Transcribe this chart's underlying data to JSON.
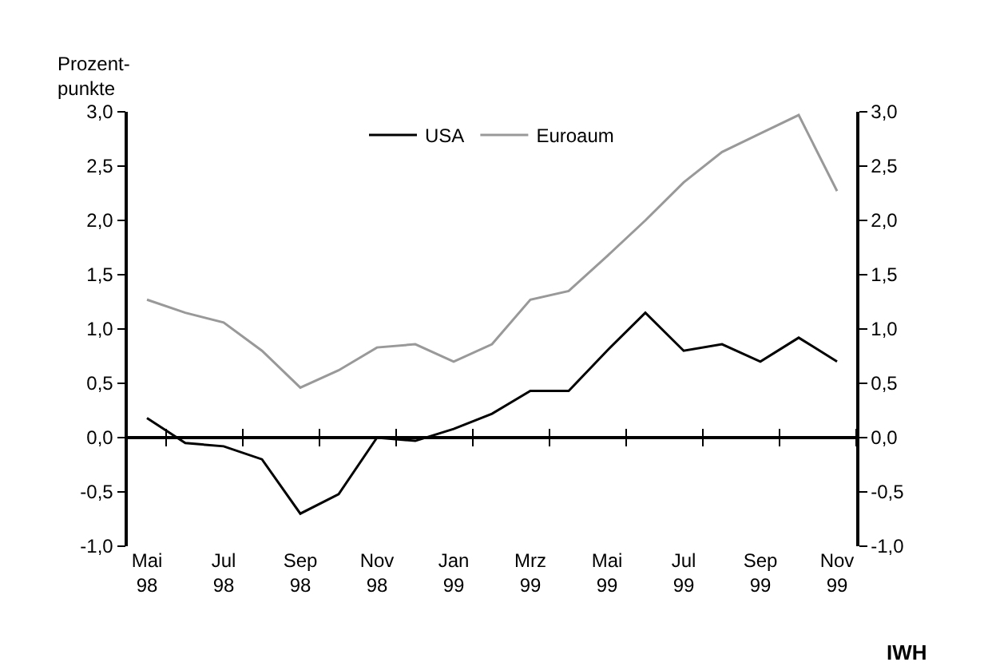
{
  "chart_data": {
    "type": "line",
    "ylabel": "Prozent-\npunkte",
    "categories": [
      "Mai\n98",
      null,
      "Jul\n98",
      null,
      "Sep\n98",
      null,
      "Nov\n98",
      null,
      "Jan\n99",
      null,
      "Mrz\n99",
      null,
      "Mai\n99",
      null,
      "Jul\n99",
      null,
      "Sep\n99",
      null,
      "Nov\n99"
    ],
    "series": [
      {
        "name": "USA",
        "color": "#000000",
        "values": [
          0.18,
          -0.05,
          -0.08,
          -0.2,
          -0.7,
          -0.52,
          0.0,
          -0.03,
          0.08,
          0.22,
          0.43,
          0.43,
          0.8,
          1.15,
          0.8,
          0.86,
          0.7,
          0.92,
          0.7
        ]
      },
      {
        "name": "Euroaum",
        "color": "#999999",
        "values": [
          1.27,
          1.15,
          1.06,
          0.8,
          0.46,
          0.62,
          0.83,
          0.86,
          0.7,
          0.86,
          1.27,
          1.35,
          1.67,
          2.0,
          2.35,
          2.63,
          2.8,
          2.97,
          2.27
        ]
      }
    ],
    "ylim": [
      -1.0,
      3.0
    ],
    "yticks": [
      {
        "value": -1.0,
        "label": "-1,0"
      },
      {
        "value": -0.5,
        "label": "-0,5"
      },
      {
        "value": 0.0,
        "label": "0,0"
      },
      {
        "value": 0.5,
        "label": "0,5"
      },
      {
        "value": 1.0,
        "label": "1,0"
      },
      {
        "value": 1.5,
        "label": "1,5"
      },
      {
        "value": 2.0,
        "label": "2,0"
      },
      {
        "value": 2.5,
        "label": "2,5"
      },
      {
        "value": 3.0,
        "label": "3,0"
      }
    ],
    "y2lim": [
      -1.0,
      3.0
    ],
    "y2ticks": [
      {
        "value": -1.0,
        "label": "-1,0"
      },
      {
        "value": -0.5,
        "label": "-0,5"
      },
      {
        "value": 0.0,
        "label": "0,0"
      },
      {
        "value": 0.5,
        "label": "0,5"
      },
      {
        "value": 1.0,
        "label": "1,0"
      },
      {
        "value": 1.5,
        "label": "1,5"
      },
      {
        "value": 2.0,
        "label": "2,0"
      },
      {
        "value": 2.5,
        "label": "2,5"
      },
      {
        "value": 3.0,
        "label": "3,0"
      }
    ],
    "legend": "top",
    "marker": "none",
    "line_style": "solid",
    "annotations": [
      "IWH"
    ]
  }
}
